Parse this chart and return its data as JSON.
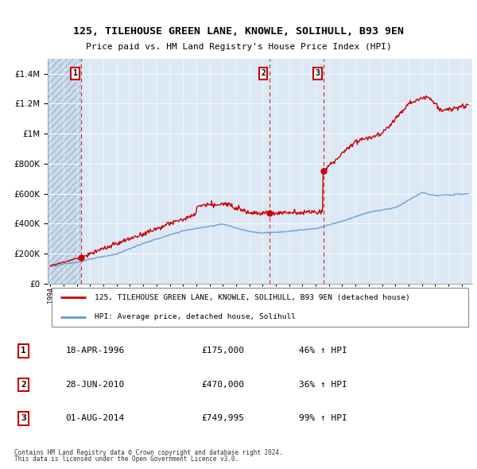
{
  "title": "125, TILEHOUSE GREEN LANE, KNOWLE, SOLIHULL, B93 9EN",
  "subtitle": "Price paid vs. HM Land Registry's House Price Index (HPI)",
  "transactions": [
    {
      "date": 1996.3,
      "price": 175000,
      "label": "1",
      "date_str": "18-APR-1996",
      "pct": "46% ↑ HPI"
    },
    {
      "date": 2010.49,
      "price": 470000,
      "label": "2",
      "date_str": "28-JUN-2010",
      "pct": "36% ↑ HPI"
    },
    {
      "date": 2014.58,
      "price": 749995,
      "label": "3",
      "date_str": "01-AUG-2014",
      "pct": "99% ↑ HPI"
    }
  ],
  "legend_property": "125, TILEHOUSE GREEN LANE, KNOWLE, SOLIHULL, B93 9EN (detached house)",
  "legend_hpi": "HPI: Average price, detached house, Solihull",
  "footer1": "Contains HM Land Registry data © Crown copyright and database right 2024.",
  "footer2": "This data is licensed under the Open Government Licence v3.0.",
  "ylim": [
    0,
    1500000
  ],
  "xlim_start": 1993.8,
  "xlim_end": 2025.8,
  "property_color": "#cc0000",
  "hpi_color": "#6699cc",
  "background_color": "#dce9f5",
  "hatch_bg_color": "#c5d8ea",
  "transaction_box_color": "#cc0000",
  "grid_color": "#ffffff",
  "row_labels": [
    "1",
    "2",
    "3"
  ],
  "row_dates": [
    "18-APR-1996",
    "28-JUN-2010",
    "01-AUG-2014"
  ],
  "row_prices": [
    "£175,000",
    "£470,000",
    "£749,995"
  ],
  "row_pcts": [
    "46% ↑ HPI",
    "36% ↑ HPI",
    "99% ↑ HPI"
  ]
}
